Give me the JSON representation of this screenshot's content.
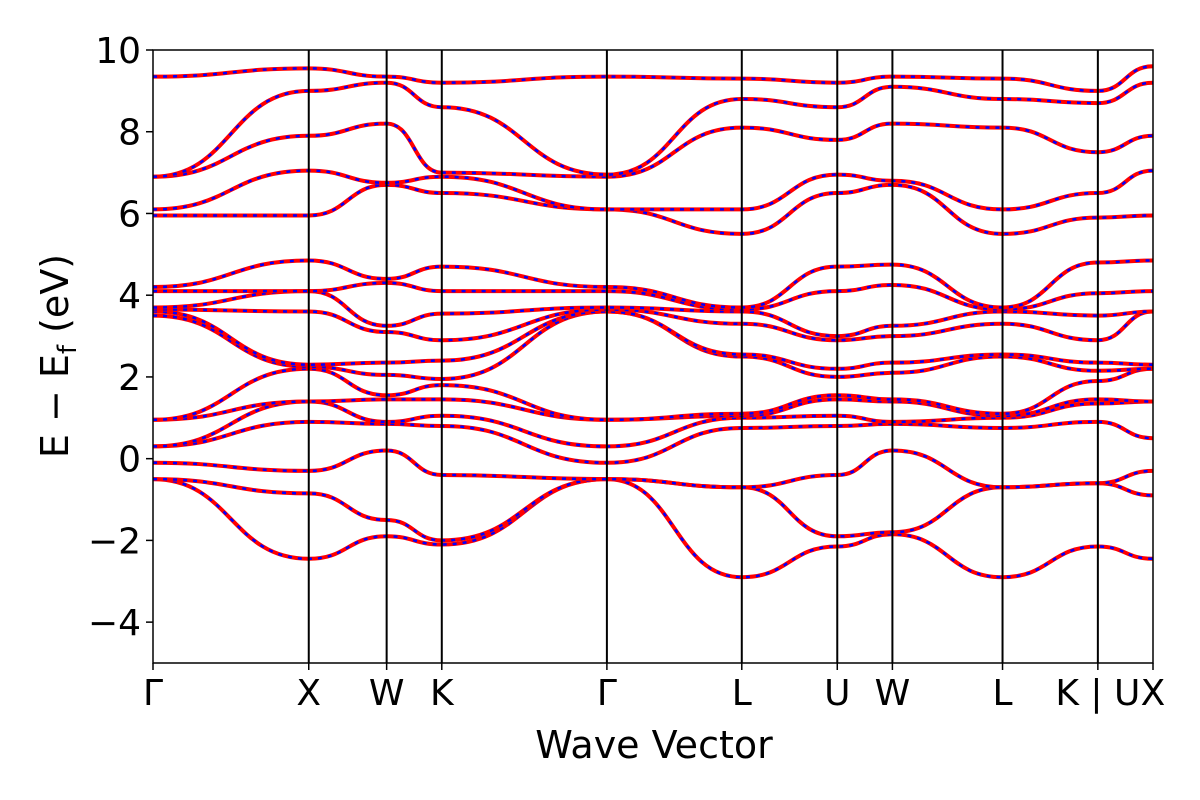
{
  "chart_data": {
    "type": "line",
    "title": "",
    "xlabel": "Wave Vector",
    "ylabel": "E − E",
    "ylabel_sub": "f",
    "ylabel_unit": " (eV)",
    "ylim": [
      -5,
      10
    ],
    "yticks": [
      {
        "value": -4,
        "label": "−4"
      },
      {
        "value": -2,
        "label": "−2"
      },
      {
        "value": 0,
        "label": "0"
      },
      {
        "value": 2,
        "label": "2"
      },
      {
        "value": 4,
        "label": "4"
      },
      {
        "value": 6,
        "label": "6"
      },
      {
        "value": 8,
        "label": "8"
      },
      {
        "value": 10,
        "label": "10"
      }
    ],
    "kpoints": [
      {
        "label": "Γ",
        "k": 0.0
      },
      {
        "label": "X",
        "k": 1.0
      },
      {
        "label": "W",
        "k": 1.5
      },
      {
        "label": "K",
        "k": 1.854
      },
      {
        "label": "Γ",
        "k": 2.914
      },
      {
        "label": "L",
        "k": 3.78
      },
      {
        "label": "U",
        "k": 4.393
      },
      {
        "label": "W",
        "k": 4.747
      },
      {
        "label": "L",
        "k": 5.454
      },
      {
        "label": "K | U",
        "k": 6.066
      },
      {
        "label": "X",
        "k": 6.42
      }
    ],
    "xlim": [
      0,
      6.42
    ],
    "grid": false,
    "colors": {
      "band": "#ff0000",
      "overlay": "#0000ff"
    },
    "bands": [
      [
        -0.5,
        -2.45,
        -1.9,
        -2.1,
        -0.5,
        -2.9,
        -2.15,
        -1.85,
        -2.9,
        -2.15,
        -2.45
      ],
      [
        -0.5,
        -0.85,
        -1.5,
        -2.0,
        -0.5,
        -0.7,
        -1.9,
        -1.8,
        -0.7,
        -0.6,
        -0.9
      ],
      [
        -0.1,
        -0.3,
        0.2,
        -0.4,
        -0.5,
        -0.7,
        -0.4,
        0.2,
        -0.7,
        -0.6,
        -0.3
      ],
      [
        0.3,
        0.9,
        0.85,
        0.8,
        -0.1,
        0.75,
        0.8,
        0.85,
        0.75,
        0.9,
        0.5
      ],
      [
        0.3,
        1.4,
        0.9,
        1.05,
        0.3,
        1.0,
        1.05,
        0.9,
        1.0,
        1.35,
        1.4
      ],
      [
        0.95,
        1.4,
        1.45,
        1.45,
        0.95,
        1.05,
        1.45,
        1.4,
        1.05,
        1.45,
        1.4
      ],
      [
        0.95,
        2.2,
        1.55,
        1.8,
        0.95,
        1.1,
        1.55,
        1.45,
        1.1,
        1.9,
        2.2
      ],
      [
        3.5,
        2.25,
        2.05,
        1.95,
        3.6,
        2.5,
        2.0,
        2.1,
        2.5,
        2.15,
        2.2
      ],
      [
        3.6,
        2.3,
        2.35,
        2.4,
        3.6,
        2.55,
        2.2,
        2.35,
        2.55,
        2.35,
        2.3
      ],
      [
        3.65,
        3.6,
        3.1,
        2.9,
        3.65,
        3.3,
        2.9,
        3.0,
        3.3,
        2.9,
        3.6
      ],
      [
        3.7,
        4.1,
        3.25,
        3.55,
        3.7,
        3.6,
        3.0,
        3.25,
        3.6,
        3.5,
        3.6
      ],
      [
        4.1,
        4.1,
        4.3,
        4.1,
        4.1,
        3.65,
        4.1,
        4.25,
        3.65,
        4.05,
        4.1
      ],
      [
        4.2,
        4.85,
        4.4,
        4.7,
        4.2,
        3.7,
        4.7,
        4.75,
        3.7,
        4.8,
        4.85
      ],
      [
        5.95,
        5.95,
        6.7,
        6.5,
        6.1,
        5.5,
        6.5,
        6.7,
        5.5,
        5.9,
        5.95
      ],
      [
        6.1,
        7.05,
        6.75,
        6.9,
        6.1,
        6.1,
        6.95,
        6.8,
        6.1,
        6.5,
        7.05
      ],
      [
        6.9,
        7.9,
        8.2,
        7.0,
        6.9,
        8.1,
        7.8,
        8.2,
        8.1,
        7.5,
        7.9
      ],
      [
        6.9,
        9.0,
        9.2,
        8.6,
        6.95,
        8.8,
        8.6,
        9.1,
        8.8,
        8.7,
        9.2
      ],
      [
        9.35,
        9.55,
        9.35,
        9.2,
        9.35,
        9.3,
        9.2,
        9.35,
        9.3,
        9.0,
        9.6
      ]
    ]
  }
}
